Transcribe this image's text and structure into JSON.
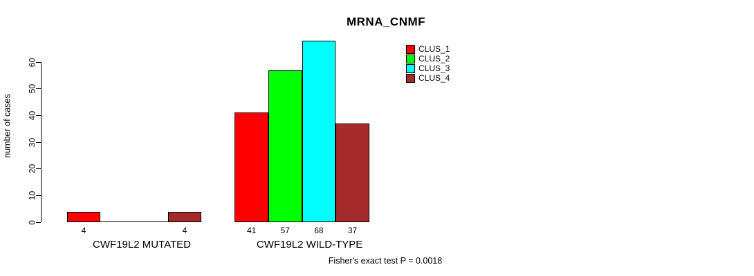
{
  "title": "MRNA_CNMF",
  "chart_data": {
    "type": "bar",
    "title": "MRNA_CNMF",
    "ylabel": "number of cases",
    "xlabel": "",
    "ylim": [
      0,
      60
    ],
    "yticks": [
      0,
      10,
      20,
      30,
      40,
      50,
      60
    ],
    "grid": false,
    "legend_position": "top-right",
    "categories": [
      "CWF19L2 MUTATED",
      "CWF19L2 WILD-TYPE"
    ],
    "series": [
      {
        "name": "CLUS_1",
        "color": "#ff0000",
        "values": [
          4,
          41
        ]
      },
      {
        "name": "CLUS_2",
        "color": "#00ff00",
        "values": [
          0,
          57
        ]
      },
      {
        "name": "CLUS_3",
        "color": "#00ffff",
        "values": [
          0,
          68
        ]
      },
      {
        "name": "CLUS_4",
        "color": "#a52a2a",
        "values": [
          4,
          37
        ]
      }
    ],
    "bar_value_labels": [
      [
        "4",
        "",
        "",
        "4"
      ],
      [
        "41",
        "57",
        "68",
        "37"
      ]
    ],
    "annotation": "Fisher's exact test P = 0.0018"
  }
}
